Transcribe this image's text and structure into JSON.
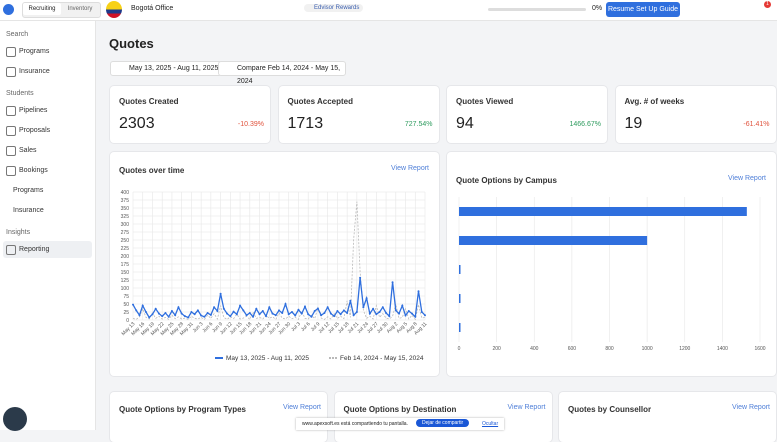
{
  "topbar": {
    "tabs": [
      "Recruiting",
      "Inventory"
    ],
    "office": "Bogotá Office",
    "rewards": "Edvisor Rewards",
    "progress": "0%",
    "button": "Resume Set Up Guide",
    "badge": "1"
  },
  "sidebar": [
    {
      "section": "Search",
      "items": [
        "Programs",
        "Insurance"
      ]
    },
    {
      "section": "Students",
      "items": [
        "Pipelines",
        "Proposals",
        "Sales",
        "Bookings",
        "Programs",
        "Insurance"
      ]
    },
    {
      "section": "Insights",
      "items": [
        "Reporting"
      ]
    }
  ],
  "page": {
    "title": "Quotes",
    "date_range": "May 13, 2025 - Aug 11, 2025",
    "compare": "Compare Feb 14, 2024 - May 15, 2024"
  },
  "kpis": [
    {
      "label": "Quotes Created",
      "value": "2303",
      "change": "-10.39%"
    },
    {
      "label": "Quotes Accepted",
      "value": "1713",
      "change": "727.54%"
    },
    {
      "label": "Quotes Viewed",
      "value": "94",
      "change": "1466.67%"
    },
    {
      "label": "Avg. # of weeks",
      "value": "19",
      "change": "-61.41%"
    }
  ],
  "view_report": "View Report",
  "bottom_cards": [
    "Quote Options by Program Types",
    "Quote Options by Destination",
    "Quotes by Counsellor"
  ],
  "share_banner": {
    "text": "www.apexsoft.es está compartiendo tu pantalla.",
    "stop": "Dejar de compartir",
    "hide": "Ocultar"
  },
  "chart_data": [
    {
      "type": "line",
      "title": "Quotes over time",
      "categories": [
        "May 13",
        null,
        null,
        "May 16",
        null,
        null,
        "May 19",
        null,
        null,
        "May 22",
        null,
        null,
        "May 25",
        null,
        null,
        "May 28",
        null,
        null,
        "May 31",
        null,
        null,
        "Jun 3",
        null,
        null,
        "Jun 6",
        null,
        null,
        "Jun 9",
        null,
        null,
        "Jun 12",
        null,
        null,
        "Jun 15",
        null,
        null,
        "Jun 18",
        null,
        null,
        "Jun 21",
        null,
        null,
        "Jun 24",
        null,
        null,
        "Jun 27",
        null,
        null,
        "Jun 30",
        null,
        null,
        "Jul 3",
        null,
        null,
        "Jul 6",
        null,
        null,
        "Jul 9",
        null,
        null,
        "Jul 12",
        null,
        null,
        "Jul 15",
        null,
        null,
        "Jul 18",
        null,
        null,
        "Jul 21",
        null,
        null,
        "Jul 24",
        null,
        null,
        "Jul 27",
        null,
        null,
        "Jul 30",
        null,
        null,
        "Aug 2",
        null,
        null,
        "Aug 5",
        null,
        null,
        "Aug 8",
        null,
        null,
        "Aug 11"
      ],
      "series": [
        {
          "name": "May 13, 2025 - Aug 11, 2025",
          "color": "#2f6fde",
          "dashed": false,
          "values": [
            48,
            30,
            15,
            45,
            25,
            8,
            18,
            35,
            20,
            12,
            22,
            10,
            28,
            15,
            40,
            20,
            12,
            8,
            25,
            18,
            30,
            14,
            10,
            22,
            16,
            40,
            28,
            82,
            35,
            20,
            12,
            26,
            18,
            45,
            30,
            15,
            22,
            10,
            35,
            18,
            28,
            12,
            40,
            20,
            15,
            30,
            22,
            50,
            18,
            25,
            14,
            32,
            20,
            42,
            18,
            10,
            28,
            36,
            15,
            22,
            40,
            20,
            12,
            28,
            18,
            30,
            22,
            60,
            15,
            25,
            132,
            40,
            68,
            20,
            35,
            18,
            25,
            40,
            22,
            12,
            118,
            30,
            20,
            45,
            14,
            28,
            20,
            10,
            90,
            25,
            15
          ]
        },
        {
          "name": "Feb 14, 2024 - May 15, 2024",
          "color": "#b9b9b9",
          "dashed": true,
          "values": [
            5,
            2,
            10,
            35,
            8,
            3,
            22,
            5,
            12,
            3,
            8,
            2,
            15,
            4,
            10,
            3,
            6,
            2,
            12,
            5,
            3,
            8,
            2,
            15,
            5,
            20,
            3,
            45,
            8,
            2,
            10,
            4,
            18,
            3,
            6,
            12,
            2,
            25,
            5,
            8,
            3,
            15,
            5,
            10,
            2,
            22,
            6,
            3,
            12,
            4,
            8,
            2,
            28,
            5,
            3,
            15,
            4,
            38,
            6,
            2,
            10,
            3,
            20,
            5,
            12,
            4,
            60,
            8,
            250,
            370,
            150,
            30,
            5,
            12,
            3,
            45,
            8,
            20,
            6,
            3,
            12,
            50,
            5,
            8,
            35,
            3,
            15,
            2,
            48,
            6,
            8
          ]
        }
      ],
      "ylim": [
        0,
        400
      ],
      "yticks": [
        0,
        25,
        50,
        75,
        100,
        125,
        150,
        175,
        200,
        225,
        250,
        275,
        300,
        325,
        350,
        375,
        400
      ],
      "grid": true
    },
    {
      "type": "hbar",
      "title": "Quote Options by Campus",
      "categories": [
        null,
        null,
        null,
        null,
        null
      ],
      "values": [
        1530,
        1000,
        5,
        5,
        5
      ],
      "color": "#2f6fde",
      "xlim": [
        0,
        1600
      ],
      "xticks": [
        0,
        200,
        400,
        600,
        800,
        1000,
        1200,
        1400,
        1600
      ],
      "grid": true
    }
  ]
}
